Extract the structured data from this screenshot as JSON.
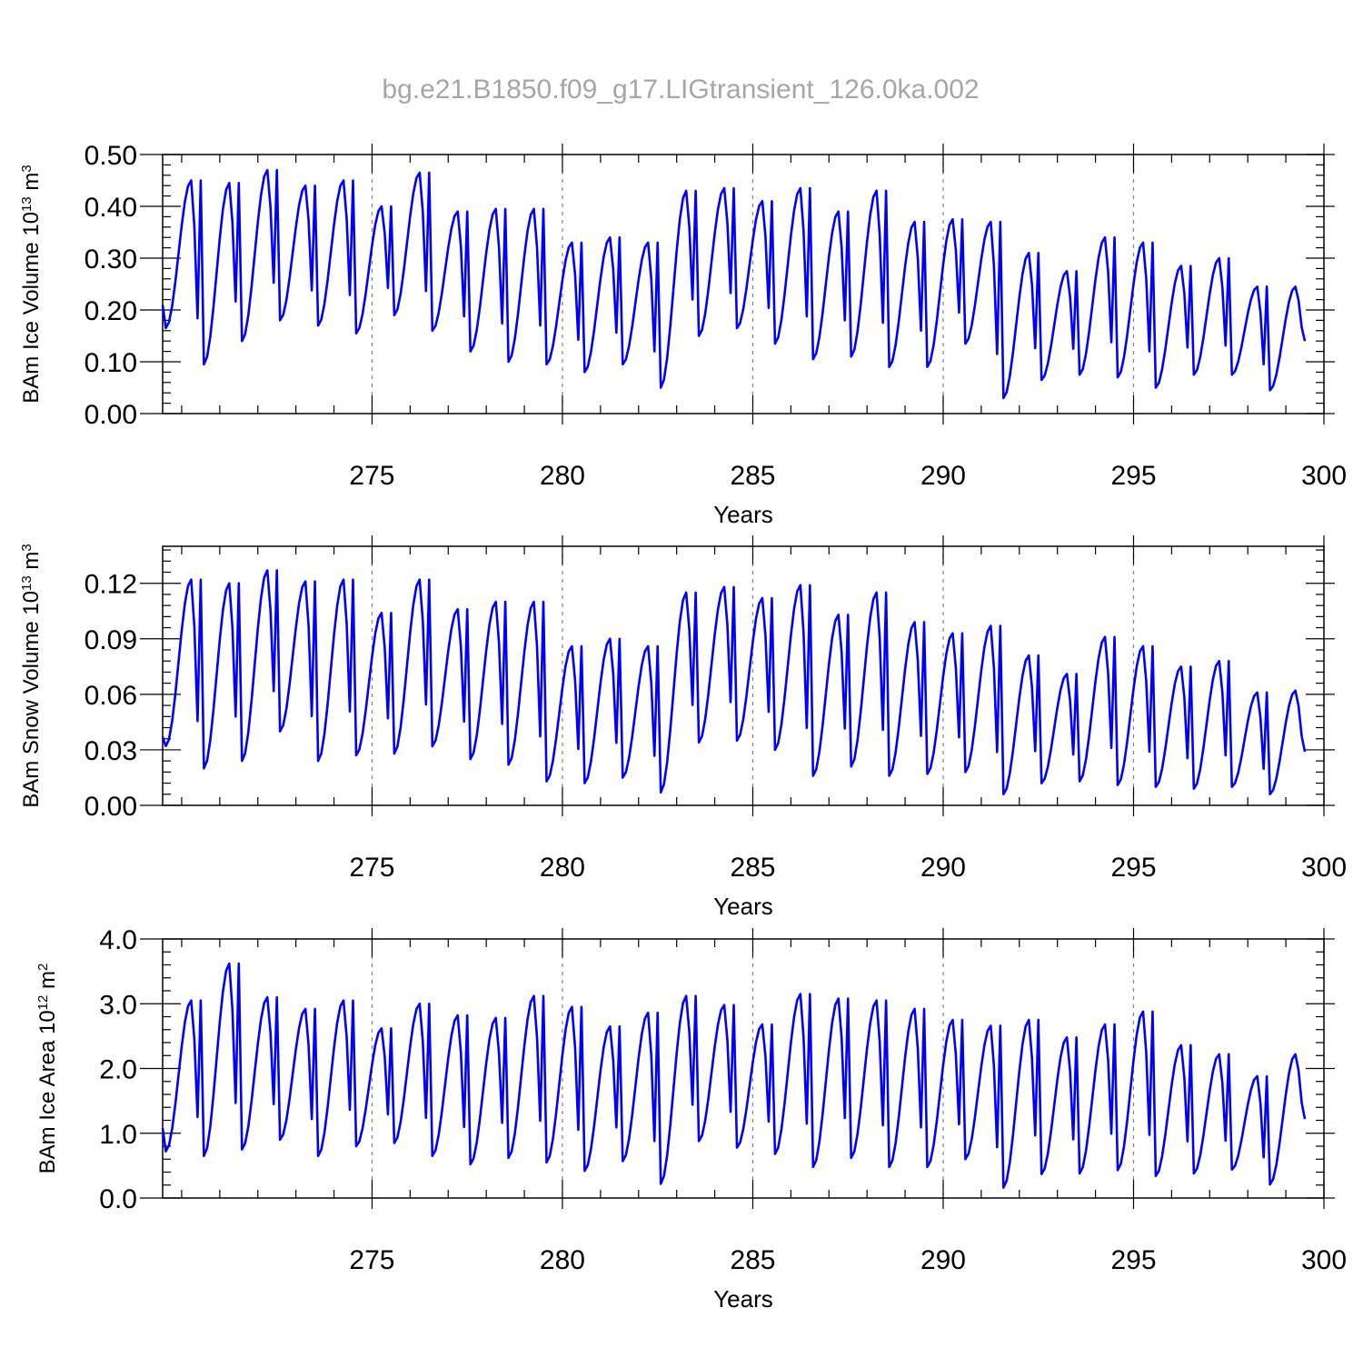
{
  "figure": {
    "title": "bg.e21.B1850.f09_g17.LIGtransient_126.0ka.002",
    "line_color": "#0000ff",
    "grid_color": "#808080"
  },
  "chart_data": [
    {
      "type": "line",
      "title": "bg.e21.B1850.f09_g17.LIGtransient_126.0ka.002",
      "xlabel": "Years",
      "ylabel": "BAm Ice Volume 10^13 m^3",
      "ylabel_base": "BAm Ice Volume 10",
      "ylabel_exp": "13",
      "ylabel_unit": " m",
      "ylabel_unit_exp": "3",
      "xlim": [
        269.5,
        300
      ],
      "ylim": [
        0,
        0.5
      ],
      "x_ticks": [
        275,
        280,
        285,
        290,
        295,
        300
      ],
      "x_tick_labels": [
        "275",
        "280",
        "285",
        "290",
        "295",
        "300"
      ],
      "y_ticks": [
        0,
        0.1,
        0.2,
        0.3,
        0.4,
        0.5
      ],
      "y_tick_labels": [
        "0.00",
        "0.10",
        "0.20",
        "0.30",
        "0.40",
        "0.50"
      ],
      "grid": "vertical dashed at 275, 280, 285, 290, 295",
      "start_year": 269.5,
      "months_per_year": 12,
      "series": [
        {
          "peaks": [
            0.45,
            0.445,
            0.47,
            0.44,
            0.45,
            0.4,
            0.465,
            0.39,
            0.395,
            0.395,
            0.33,
            0.34,
            0.33,
            0.43,
            0.435,
            0.41,
            0.435,
            0.39,
            0.43,
            0.37,
            0.375,
            0.37,
            0.31,
            0.275,
            0.34,
            0.33,
            0.285,
            0.3,
            0.245,
            0.245
          ],
          "troughs": [
            0.165,
            0.095,
            0.14,
            0.18,
            0.17,
            0.155,
            0.19,
            0.16,
            0.12,
            0.1,
            0.095,
            0.08,
            0.095,
            0.05,
            0.15,
            0.165,
            0.135,
            0.105,
            0.11,
            0.09,
            0.09,
            0.135,
            0.03,
            0.065,
            0.075,
            0.07,
            0.05,
            0.075,
            0.075,
            0.045
          ],
          "start_value": 0.21,
          "end_value": 0.14
        }
      ]
    },
    {
      "type": "line",
      "xlabel": "Years",
      "ylabel": "BAm Snow Volume 10^13 m^3",
      "ylabel_base": "BAm Snow Volume 10",
      "ylabel_exp": "13",
      "ylabel_unit": " m",
      "ylabel_unit_exp": "3",
      "xlim": [
        269.5,
        300
      ],
      "ylim": [
        0,
        0.14
      ],
      "x_ticks": [
        275,
        280,
        285,
        290,
        295,
        300
      ],
      "x_tick_labels": [
        "275",
        "280",
        "285",
        "290",
        "295",
        "300"
      ],
      "y_ticks": [
        0,
        0.03,
        0.06,
        0.09,
        0.12
      ],
      "y_tick_labels": [
        "0.00",
        "0.03",
        "0.06",
        "0.09",
        "0.12"
      ],
      "grid": "vertical dashed at 275, 280, 285, 290, 295",
      "start_year": 269.5,
      "months_per_year": 12,
      "series": [
        {
          "peaks": [
            0.122,
            0.12,
            0.127,
            0.121,
            0.122,
            0.104,
            0.122,
            0.106,
            0.11,
            0.11,
            0.086,
            0.09,
            0.086,
            0.115,
            0.118,
            0.112,
            0.119,
            0.103,
            0.115,
            0.099,
            0.093,
            0.097,
            0.081,
            0.071,
            0.091,
            0.086,
            0.075,
            0.078,
            0.061,
            0.062
          ],
          "troughs": [
            0.032,
            0.02,
            0.024,
            0.04,
            0.024,
            0.027,
            0.028,
            0.032,
            0.025,
            0.022,
            0.013,
            0.012,
            0.015,
            0.007,
            0.034,
            0.035,
            0.03,
            0.016,
            0.021,
            0.016,
            0.017,
            0.018,
            0.006,
            0.012,
            0.013,
            0.011,
            0.01,
            0.009,
            0.01,
            0.006
          ],
          "start_value": 0.037,
          "end_value": 0.029
        }
      ]
    },
    {
      "type": "line",
      "xlabel": "Years",
      "ylabel": "BAm Ice Area 10^12 m^2",
      "ylabel_base": "BAm Ice Area 10",
      "ylabel_exp": "12",
      "ylabel_unit": " m",
      "ylabel_unit_exp": "2",
      "xlim": [
        269.5,
        300
      ],
      "ylim": [
        0,
        4.0
      ],
      "x_ticks": [
        275,
        280,
        285,
        290,
        295,
        300
      ],
      "x_tick_labels": [
        "275",
        "280",
        "285",
        "290",
        "295",
        "300"
      ],
      "y_ticks": [
        0,
        1,
        2,
        3,
        4
      ],
      "y_tick_labels": [
        "0.0",
        "1.0",
        "2.0",
        "3.0",
        "4.0"
      ],
      "grid": "vertical dashed at 275, 280, 285, 290, 295",
      "start_year": 269.5,
      "months_per_year": 12,
      "series": [
        {
          "peaks": [
            3.05,
            3.62,
            3.1,
            2.92,
            3.05,
            2.62,
            3.0,
            2.82,
            2.78,
            3.12,
            2.95,
            2.65,
            2.86,
            3.12,
            2.98,
            2.68,
            3.15,
            3.08,
            3.05,
            2.92,
            2.75,
            2.66,
            2.75,
            2.48,
            2.68,
            2.88,
            2.36,
            2.22,
            1.88,
            2.22
          ],
          "troughs": [
            0.72,
            0.65,
            0.75,
            0.9,
            0.65,
            0.8,
            0.85,
            0.65,
            0.52,
            0.62,
            0.55,
            0.42,
            0.57,
            0.22,
            0.88,
            0.78,
            0.68,
            0.48,
            0.62,
            0.48,
            0.48,
            0.6,
            0.16,
            0.37,
            0.38,
            0.43,
            0.34,
            0.38,
            0.44,
            0.21
          ],
          "start_value": 1.08,
          "end_value": 1.22
        }
      ]
    }
  ]
}
